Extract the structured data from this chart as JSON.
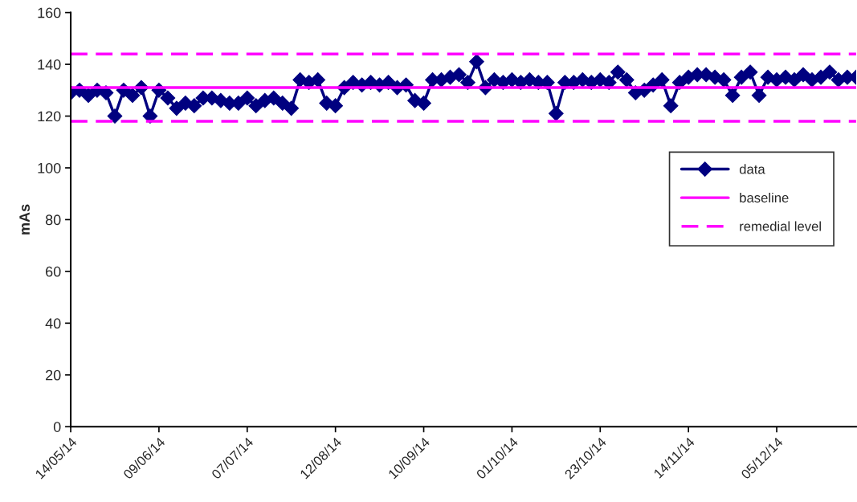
{
  "chart_data": {
    "type": "line",
    "ylabel": "mAs",
    "categories": [
      "14/05/14",
      null,
      null,
      null,
      null,
      null,
      null,
      null,
      null,
      null,
      "09/06/14",
      null,
      null,
      null,
      null,
      null,
      null,
      null,
      null,
      null,
      "07/07/14",
      null,
      null,
      null,
      null,
      null,
      null,
      null,
      null,
      null,
      "12/08/14",
      null,
      null,
      null,
      null,
      null,
      null,
      null,
      null,
      null,
      "10/09/14",
      null,
      null,
      null,
      null,
      null,
      null,
      null,
      null,
      null,
      "01/10/14",
      null,
      null,
      null,
      null,
      null,
      null,
      null,
      null,
      null,
      "23/10/14",
      null,
      null,
      null,
      null,
      null,
      null,
      null,
      null,
      null,
      "14/11/14",
      null,
      null,
      null,
      null,
      null,
      null,
      null,
      null,
      null,
      "05/12/14",
      null,
      null,
      null,
      null,
      null,
      null,
      null,
      null,
      null
    ],
    "series": [
      {
        "name": "data",
        "color": "#000080",
        "marker": "diamond",
        "values": [
          129,
          130,
          128,
          130,
          129,
          120,
          130,
          128,
          131,
          120,
          130,
          127,
          123,
          125,
          124,
          127,
          127,
          126,
          125,
          125,
          127,
          124,
          126,
          127,
          125,
          123,
          134,
          133,
          134,
          125,
          124,
          131,
          133,
          132,
          133,
          132,
          133,
          131,
          132,
          126,
          125,
          134,
          134,
          135,
          136,
          133,
          141,
          131,
          134,
          133,
          134,
          133,
          134,
          133,
          133,
          121,
          133,
          133,
          134,
          133,
          134,
          133,
          137,
          134,
          129,
          130,
          132,
          134,
          124,
          133,
          135,
          136,
          136,
          135,
          134,
          128,
          135,
          137,
          128,
          135,
          134,
          135,
          134,
          136,
          134,
          135,
          137,
          134,
          135,
          135
        ]
      }
    ],
    "ref_lines": [
      {
        "axis": "y",
        "value": 131,
        "label": "baseline",
        "color": "#ff00ff",
        "line_style": "solid"
      },
      {
        "axis": "y",
        "value": 144,
        "label": "remedial level",
        "color": "#ff00ff",
        "line_style": "dashed"
      },
      {
        "axis": "y",
        "value": 118,
        "label": null,
        "color": "#ff00ff",
        "line_style": "dashed"
      }
    ],
    "ylim": [
      0,
      160
    ],
    "yticks": [
      0,
      20,
      40,
      60,
      80,
      100,
      120,
      140,
      160
    ],
    "grid": false,
    "legend": "center right"
  }
}
